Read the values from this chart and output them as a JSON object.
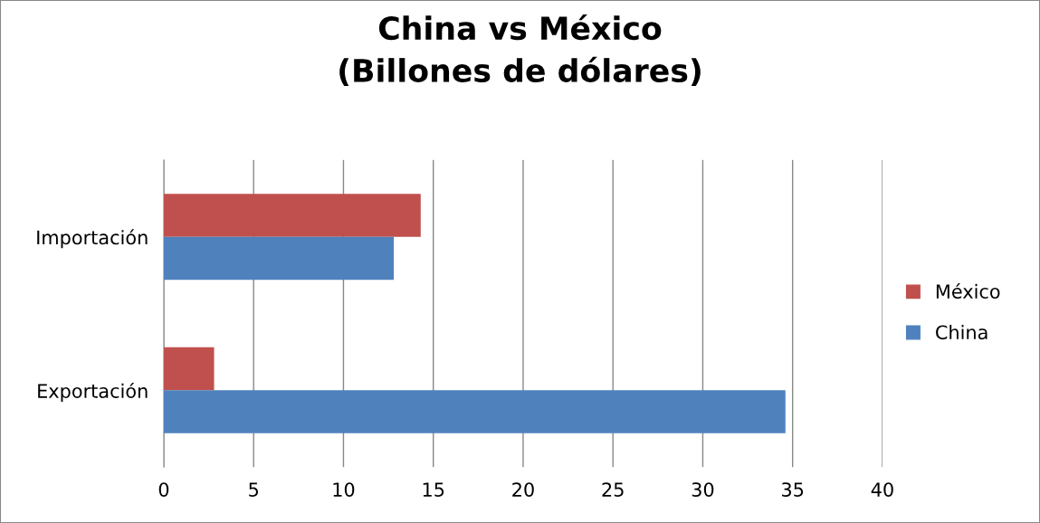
{
  "chart_data": {
    "type": "bar",
    "orientation": "horizontal",
    "title": "China vs México\n(Billones de dólares)",
    "categories": [
      "Importación",
      "Exportación"
    ],
    "series": [
      {
        "name": "México",
        "color": "#c0504d",
        "values": [
          14.3,
          2.8
        ]
      },
      {
        "name": "China",
        "color": "#4f81bd",
        "values": [
          12.8,
          34.6
        ]
      }
    ],
    "xlim": [
      0,
      40
    ],
    "xticks": [
      0,
      5,
      10,
      15,
      20,
      25,
      30,
      35,
      40
    ],
    "grid": "x",
    "legend": "right"
  }
}
